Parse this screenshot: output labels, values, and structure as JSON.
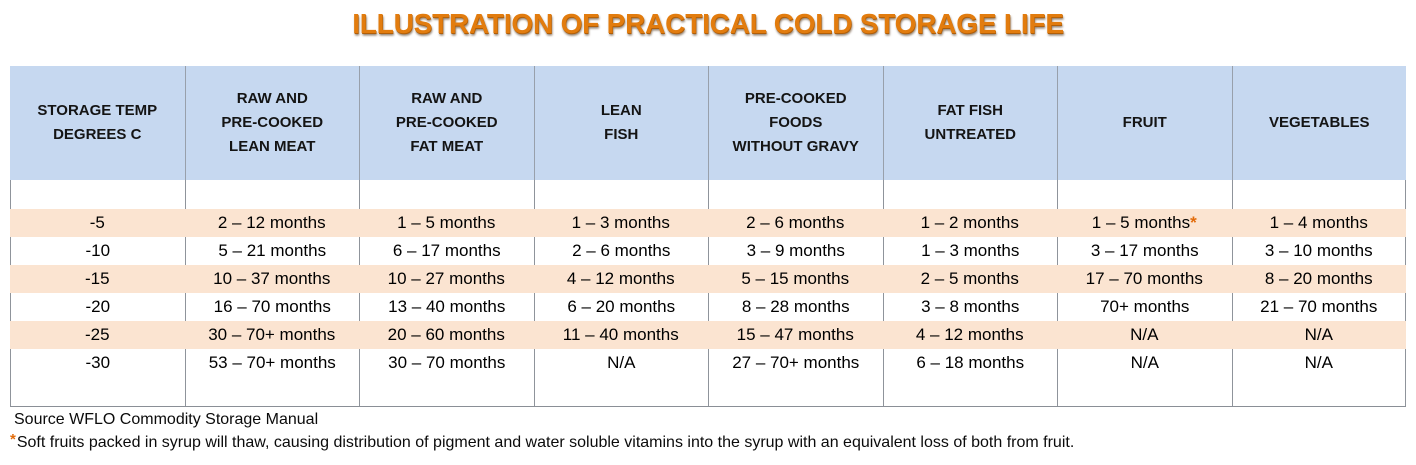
{
  "title": "ILLUSTRATION OF PRACTICAL COLD STORAGE LIFE",
  "table": {
    "columns": [
      {
        "label": "STORAGE TEMP\nDEGREES C"
      },
      {
        "label": "RAW AND\nPRE-COOKED\nLEAN MEAT"
      },
      {
        "label": "RAW AND\nPRE-COOKED\nFAT MEAT"
      },
      {
        "label": "LEAN\nFISH"
      },
      {
        "label": "PRE-COOKED\nFOODS\nWITHOUT GRAVY"
      },
      {
        "label": "FAT FISH\nUNTREATED"
      },
      {
        "label": "FRUIT"
      },
      {
        "label": "VEGETABLES"
      }
    ],
    "rows": [
      {
        "temp": "-5",
        "shaded": true,
        "values": [
          "2 – 12 months",
          "1 – 5 months",
          "1 – 3 months",
          "2 – 6 months",
          "1 – 2 months",
          "1 – 5 months*",
          "1 – 4 months"
        ]
      },
      {
        "temp": "-10",
        "shaded": false,
        "values": [
          "5 – 21 months",
          "6 – 17 months",
          "2 – 6 months",
          "3 – 9 months",
          "1 – 3 months",
          "3 – 17 months",
          "3 – 10 months"
        ]
      },
      {
        "temp": "-15",
        "shaded": true,
        "values": [
          "10 – 37 months",
          "10 – 27 months",
          "4 – 12 months",
          "5 – 15 months",
          "2 – 5 months",
          "17 – 70 months",
          "8 – 20 months"
        ]
      },
      {
        "temp": "-20",
        "shaded": false,
        "values": [
          "16 – 70 months",
          "13 – 40 months",
          "6 – 20 months",
          "8 – 28 months",
          "3 – 8 months",
          "70+ months",
          "21 – 70 months"
        ]
      },
      {
        "temp": "-25",
        "shaded": true,
        "values": [
          "30 – 70+ months",
          "20 – 60 months",
          "11 – 40 months",
          "15 – 47 months",
          "4 – 12 months",
          "N/A",
          "N/A"
        ]
      },
      {
        "temp": "-30",
        "shaded": false,
        "values": [
          "53 – 70+ months",
          "30 – 70 months",
          "N/A",
          "27 – 70+ months",
          "6 – 18 months",
          "N/A",
          "N/A"
        ]
      }
    ]
  },
  "footer": {
    "source": "Source WFLO Commodity Storage Manual",
    "footnote_marker": "*",
    "footnote_text": "Soft fruits packed in syrup will thaw, causing distribution of pigment and water soluble vitamins into the syrup with an equivalent loss of both from fruit."
  },
  "colors": {
    "title": "#e27c0e",
    "asterisk": "#e26b0a",
    "header_bg": "#c6d8f0",
    "row_shaded_bg": "#fbe4d1",
    "gridline": "#8f949b",
    "header_gridline": "#98a0ab",
    "table_bottom_border": "#8a8f96"
  }
}
